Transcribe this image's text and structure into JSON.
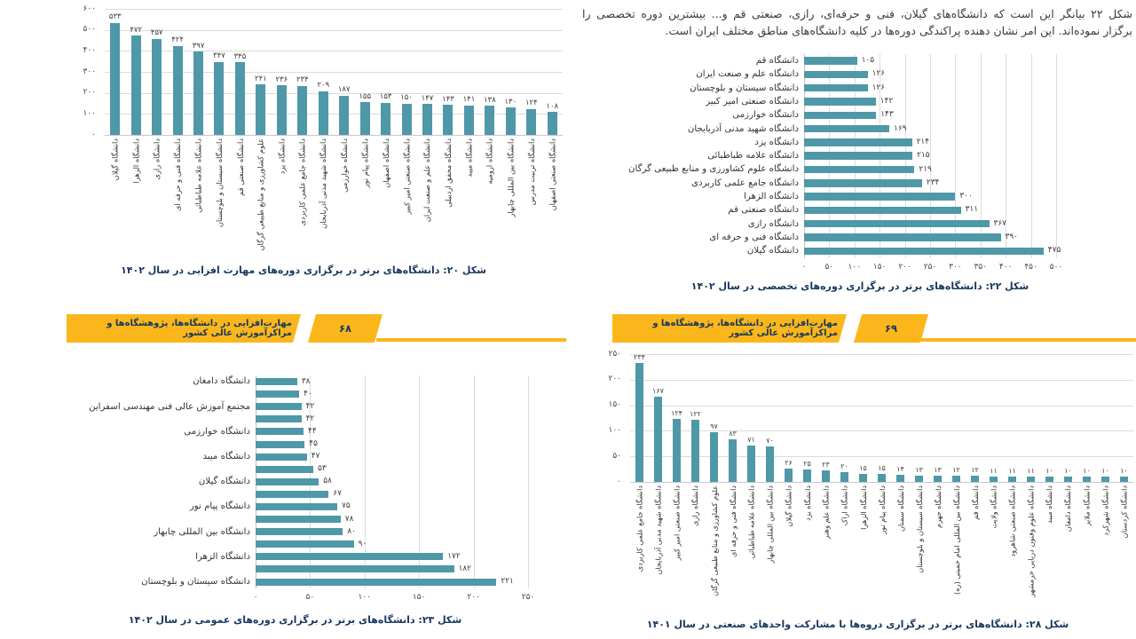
{
  "paragraph": {
    "line1": "شکل ۲۲ بیانگر این است که دانشگاه‌های گیلان، فنی و حرفه‌ای، رازی، صنعتی قم و... بیشترین دوره تخصصی را",
    "line2": "برگزار نموده‌اند. این امر نشان دهنده پراکندگی دوره‌ها در کلیه دانشگاه‌های مناطق مختلف ایران است."
  },
  "captions": {
    "fig20": "شکل ۲۰: دانشگاه‌های برتر در برگزاری دوره‌های مهارت افزایی در سال ۱۴۰۲",
    "fig22": "شکل ۲۲: دانشگاه‌های برتر در برگزاری دوره‌های تخصصی در سال ۱۴۰۲",
    "fig23": "شکل ۲۳: دانشگاه‌های برتر در برگزاری دوره‌های عمومی در سال ۱۴۰۲",
    "fig28": "شکل ۲۸: دانشگاه‌های برتر در برگزاری دروه‌ها با مشارکت واحدهای صنعتی در سال ۱۴۰۱"
  },
  "footer": {
    "title": "مهارت‌افزایی در دانشگاه‌ها، پژوهشگاه‌ها و مراکزآموزش عالی کشور",
    "left_page_number": "۶۸",
    "right_page_number": "۶۹"
  },
  "colors": {
    "bar": "#4F98A8",
    "banner_yellow": "#FBB61B",
    "caption_text": "#17375E",
    "grid": "#DCDCDC"
  },
  "chart_data": [
    {
      "id": "fig20",
      "type": "bar",
      "orientation": "vertical",
      "title": "شکل ۲۰: دانشگاه‌های برتر در برگزاری دوره‌های مهارت افزایی در سال ۱۴۰۲",
      "categories": [
        "دانشگاه گیلان",
        "دانشگاه الزهرا",
        "دانشگاه رازی",
        "دانشگاه فنی و حرفه ای",
        "دانشگاه علامه طباطبائی",
        "دانشگاه سیستان و بلوچستان",
        "دانشگاه صنعتی قم",
        "علوم کشاورزی و منابع طبیعی گرگان",
        "دانشگاه یزد",
        "دانشگاه جامع علمی کاربردی",
        "دانشگاه شهید مدنی آذربایجان",
        "دانشگاه خوارزمی",
        "دانشگاه پیام نور",
        "دانشگاه اصفهان",
        "دانشگاه صنعتی امیر کبیر",
        "دانشگاه علم و صنعت ایران",
        "دانشگاه محقق اردبیلی",
        "دانشگاه میبد",
        "دانشگاه ارومیه",
        "دانشگاه بین المللی چابهار",
        "دانشگاه تربیت مدرس",
        "دانشگاه صنعتی اصفهان"
      ],
      "values": [
        533,
        472,
        457,
        424,
        397,
        347,
        345,
        241,
        236,
        234,
        209,
        187,
        155,
        153,
        150,
        147,
        143,
        141,
        138,
        130,
        124,
        108
      ],
      "axis": {
        "min": 0,
        "max": 600,
        "step": 100
      },
      "grid": true,
      "value_labels": true
    },
    {
      "id": "fig22",
      "type": "bar",
      "orientation": "horizontal",
      "title": "شکل ۲۲: دانشگاه‌های برتر در برگزاری دوره‌های تخصصی در سال ۱۴۰۲",
      "categories": [
        "دانشگاه قم",
        "دانشگاه علم و صنعت ایران",
        "دانشگاه سیستان و بلوچستان",
        "دانشگاه صنعتی امیر کبیر",
        "دانشگاه خوارزمی",
        "دانشگاه شهید مدنی آذربایجان",
        "دانشگاه یزد",
        "دانشگاه علامه طباطبائی",
        "دانشگاه علوم کشاورزی و منابع طبیعی گرگان",
        "دانشگاه جامع علمی کاربردی",
        "دانشگاه الزهرا",
        "دانشگاه صنعتی قم",
        "دانشگاه رازی",
        "دانشگاه فنی و حرفه ای",
        "دانشگاه گیلان"
      ],
      "values": [
        105,
        126,
        126,
        142,
        143,
        169,
        214,
        215,
        219,
        234,
        300,
        311,
        367,
        390,
        475
      ],
      "axis": {
        "min": 0,
        "max": 500,
        "step": 50
      },
      "grid": true,
      "value_labels": true
    },
    {
      "id": "fig23",
      "type": "bar",
      "orientation": "horizontal",
      "title": "شکل ۲۳: دانشگاه‌های برتر در برگزاری دوره‌های عمومی در سال ۱۴۰۲",
      "categories": [
        "دانشگاه دامغان",
        "",
        "مجتمع آموزش عالی فنی مهندسی اسفراین",
        "",
        "دانشگاه خوارزمی",
        "",
        "دانشگاه میبد",
        "",
        "دانشگاه گیلان",
        "",
        "دانشگاه پیام نور",
        "",
        "دانشگاه بین المللی چابهار",
        "",
        "دانشگاه الزهرا",
        "",
        "دانشگاه سیستان و بلوچستان"
      ],
      "values": [
        38,
        40,
        42,
        42,
        44,
        45,
        47,
        53,
        58,
        67,
        75,
        78,
        80,
        90,
        172,
        182,
        221
      ],
      "axis": {
        "min": 0,
        "max": 250,
        "step": 50
      },
      "grid": true,
      "value_labels": true
    },
    {
      "id": "fig28",
      "type": "bar",
      "orientation": "vertical",
      "title": "شکل ۲۸: دانشگاه‌های برتر در برگزاری دروه‌ها با مشارکت واحدهای صنعتی در سال ۱۴۰۱",
      "categories": [
        "دانشگاه جامع علمی کاربردی",
        "دانشگاه شهید مدنی آذربایجان",
        "دانشگاه صنعتی امیر کبیر",
        "دانشگاه رازی",
        "علوم کشاورزی و منابع طبیعی گرگان",
        "دانشگاه فنی و حرفه ای",
        "دانشگاه علامه طباطبائی",
        "دانشگاه بین المللی چابهار",
        "دانشگاه گیلان",
        "دانشگاه یزد",
        "دانشگاه علم وهنر",
        "دانشگاه اراک",
        "دانشگاه الزهرا",
        "دانشگاه پیام نور",
        "دانشگاه سمنان",
        "دانشگاه سیستان و بلوچستان",
        "دانشگاه جهرم",
        "دانشگاه بین المللی امام خمینی (ره)",
        "دانشگاه قم",
        "دانشگاه ولایت",
        "دانشگاه صنعتی شاهرود",
        "دانشگاه علوم وفنون دریایی خرمشهر",
        "دانشگاه میبد",
        "دانشگاه دامغان",
        "دانشگاه ملایر",
        "دانشگاه شهرکرد",
        "دانشگاه کردستان"
      ],
      "values": [
        234,
        167,
        124,
        122,
        97,
        83,
        71,
        70,
        26,
        25,
        23,
        20,
        15,
        15,
        14,
        13,
        13,
        12,
        12,
        11,
        11,
        11,
        10,
        10,
        10,
        10,
        10
      ],
      "axis": {
        "min": 0,
        "max": 250,
        "step": 50
      },
      "grid": true,
      "value_labels": true
    }
  ]
}
